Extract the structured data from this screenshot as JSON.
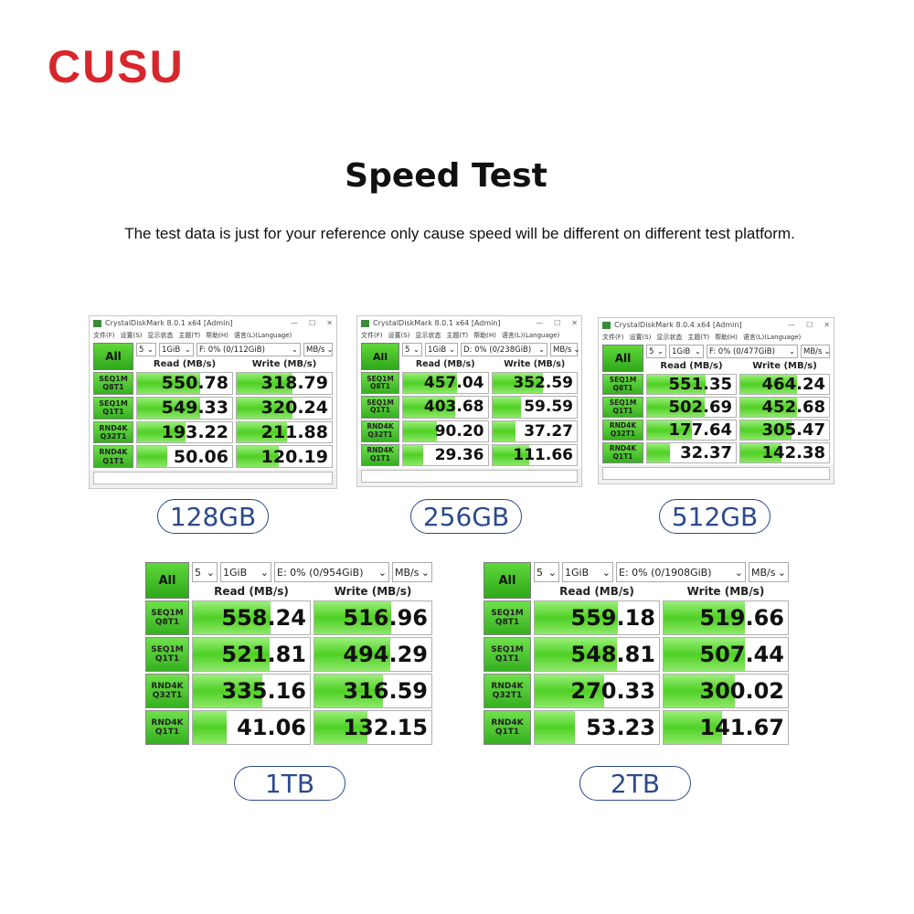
{
  "brand": "CUSU",
  "title": "Speed Test",
  "subtitle": "The test data is just for your reference only cause speed will be different on different test platform.",
  "colors": {
    "brand": "#d9262c",
    "pill": "#2c4a8c",
    "bar": "#4fd024"
  },
  "row_labels": [
    [
      "SEQ1M",
      "Q8T1"
    ],
    [
      "SEQ1M",
      "Q1T1"
    ],
    [
      "RND4K",
      "Q32T1"
    ],
    [
      "RND4K",
      "Q1T1"
    ]
  ],
  "read_header": "Read (MB/s)",
  "write_header": "Write (MB/s)",
  "all_label": "All",
  "menu": [
    "文件(F)",
    "设置(S)",
    "显示状态",
    "主题(T)",
    "帮助(H)",
    "语言(L)(Language)"
  ],
  "panels": [
    {
      "capacity": "128GB",
      "window_title": "CrystalDiskMark 8.0.1 x64 [Admin]",
      "count": "5",
      "size": "1GiB",
      "drive": "F: 0% (0/112GiB)",
      "unit": "MB/s",
      "read": [
        "550.78",
        "549.33",
        "193.22",
        "50.06"
      ],
      "write": [
        "318.79",
        "320.24",
        "211.88",
        "120.19"
      ]
    },
    {
      "capacity": "256GB",
      "window_title": "CrystalDiskMark 8.0.1 x64 [Admin]",
      "count": "5",
      "size": "1GiB",
      "drive": "D: 0% (0/238GiB)",
      "unit": "MB/s",
      "read": [
        "457.04",
        "403.68",
        "90.20",
        "29.36"
      ],
      "write": [
        "352.59",
        "59.59",
        "37.27",
        "111.66"
      ]
    },
    {
      "capacity": "512GB",
      "window_title": "CrystalDiskMark 8.0.4 x64 [Admin]",
      "count": "5",
      "size": "1GiB",
      "drive": "F: 0% (0/477GiB)",
      "unit": "MB/s",
      "read": [
        "551.35",
        "502.69",
        "177.64",
        "32.37"
      ],
      "write": [
        "464.24",
        "452.68",
        "305.47",
        "142.38"
      ]
    },
    {
      "capacity": "1TB",
      "count": "5",
      "size": "1GiB",
      "drive": "E: 0% (0/954GiB)",
      "unit": "MB/s",
      "read": [
        "558.24",
        "521.81",
        "335.16",
        "41.06"
      ],
      "write": [
        "516.96",
        "494.29",
        "316.59",
        "132.15"
      ]
    },
    {
      "capacity": "2TB",
      "count": "5",
      "size": "1GiB",
      "drive": "E: 0% (0/1908GiB)",
      "unit": "MB/s",
      "read": [
        "559.18",
        "548.81",
        "270.33",
        "53.23"
      ],
      "write": [
        "519.66",
        "507.44",
        "300.02",
        "141.67"
      ]
    }
  ]
}
